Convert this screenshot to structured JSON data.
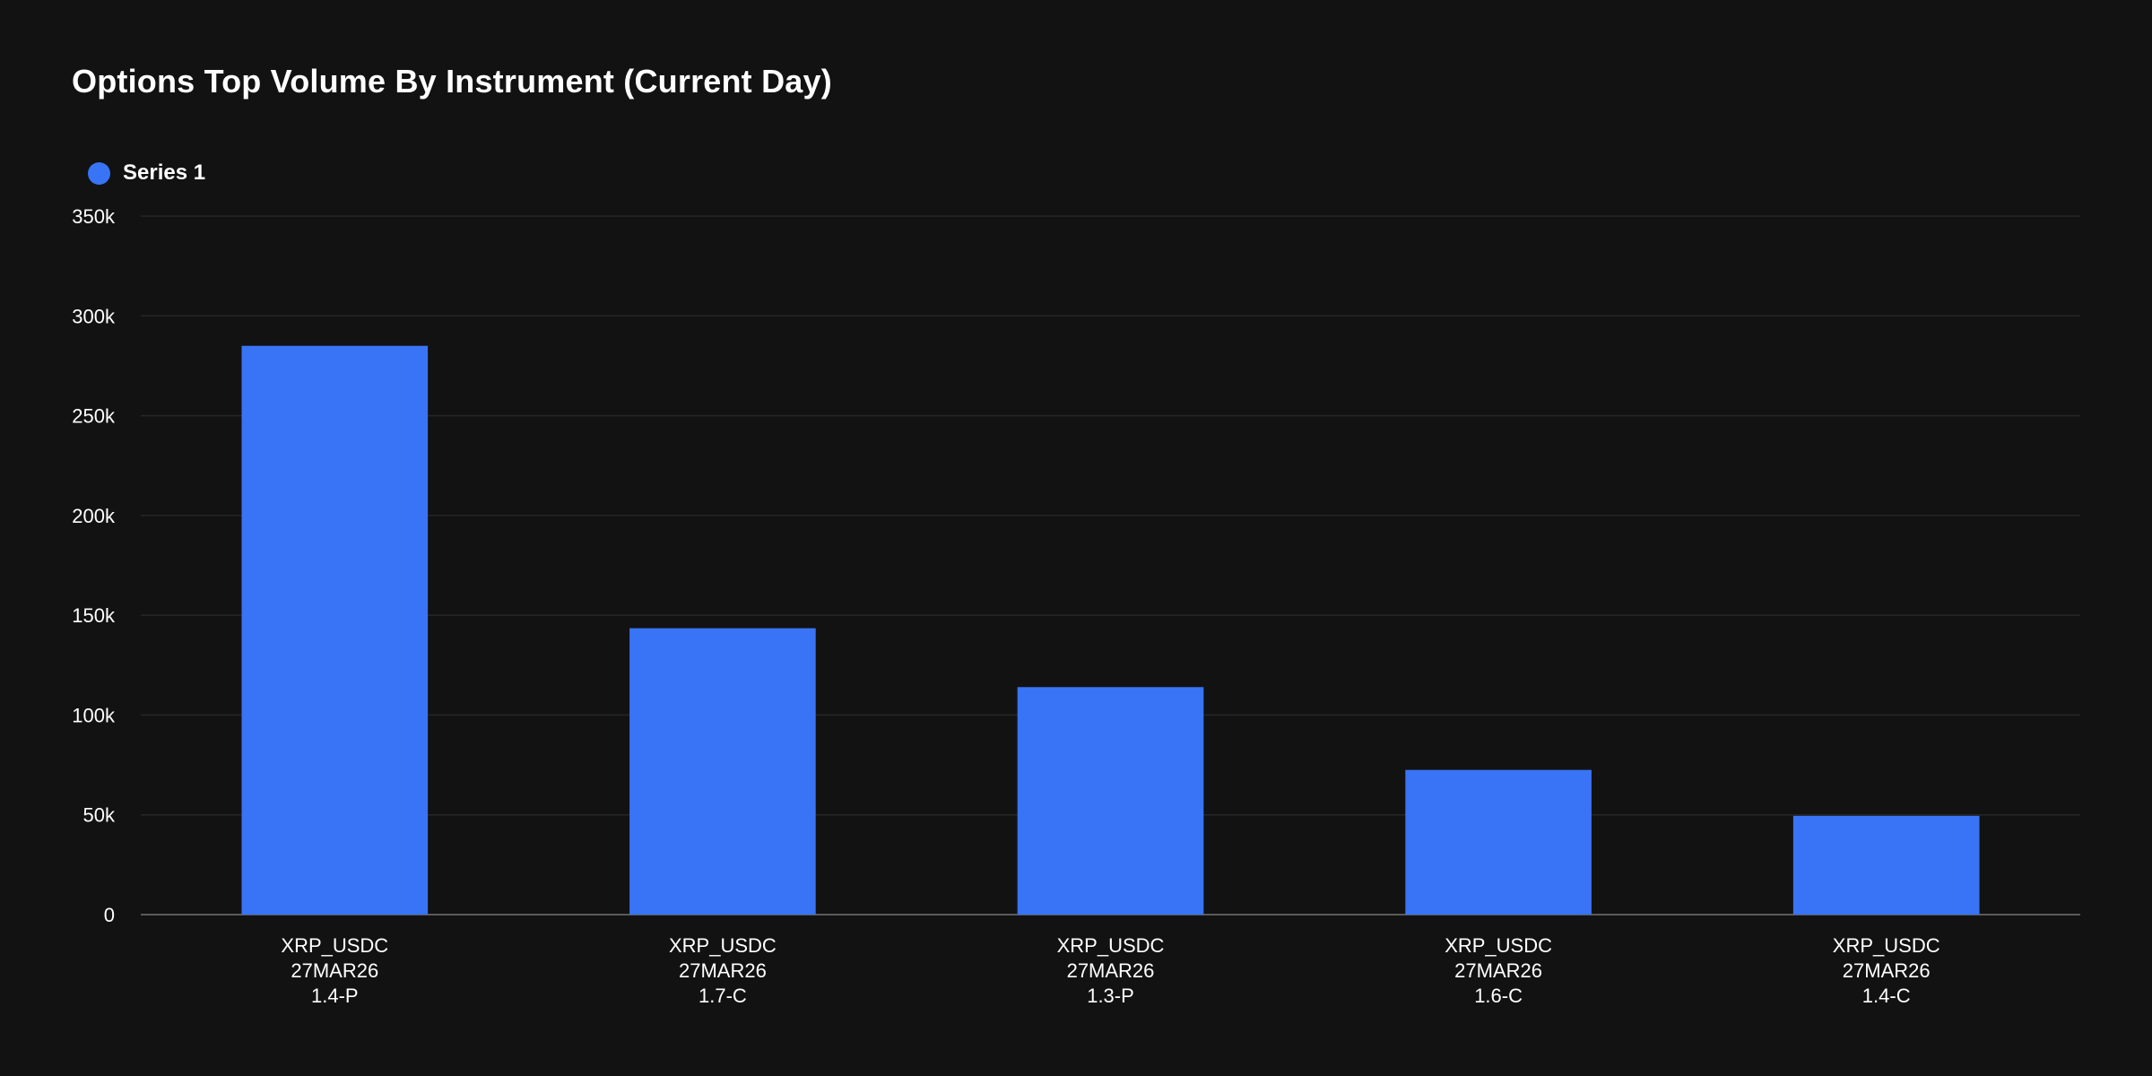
{
  "chart_data": {
    "type": "bar",
    "title": "Options Top Volume By Instrument (Current Day)",
    "xlabel": "",
    "ylabel": "",
    "ylim": [
      0,
      350000
    ],
    "yticks": [
      {
        "value": 0,
        "label": "0"
      },
      {
        "value": 50000,
        "label": "50k"
      },
      {
        "value": 100000,
        "label": "100k"
      },
      {
        "value": 150000,
        "label": "150k"
      },
      {
        "value": 200000,
        "label": "200k"
      },
      {
        "value": 250000,
        "label": "250k"
      },
      {
        "value": 300000,
        "label": "300k"
      },
      {
        "value": 350000,
        "label": "350k"
      }
    ],
    "categories": [
      [
        "XRP_USDC",
        "27MAR26",
        "1.4-P"
      ],
      [
        "XRP_USDC",
        "27MAR26",
        "1.7-C"
      ],
      [
        "XRP_USDC",
        "27MAR26",
        "1.3-P"
      ],
      [
        "XRP_USDC",
        "27MAR26",
        "1.6-C"
      ],
      [
        "XRP_USDC",
        "27MAR26",
        "1.4-C"
      ]
    ],
    "series": [
      {
        "name": "Series 1",
        "color": "#3874f5",
        "values": [
          285000,
          143500,
          114000,
          72500,
          49500
        ]
      }
    ],
    "legend": "top-left",
    "grid": true
  }
}
